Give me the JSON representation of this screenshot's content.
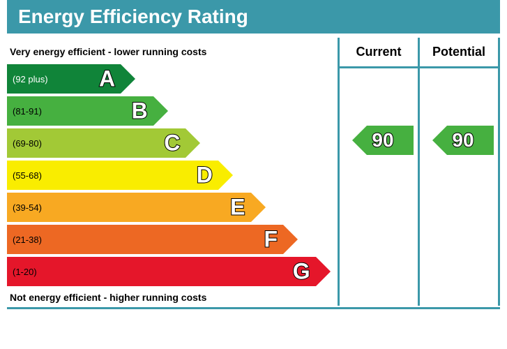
{
  "title": "Energy Efficiency Rating",
  "topLabel": "Very energy efficient - lower running costs",
  "bottomLabel": "Not energy efficient - higher running costs",
  "columns": {
    "current": {
      "label": "Current",
      "value": "90",
      "bandIndex": 1,
      "color": "#46b040"
    },
    "potential": {
      "label": "Potential",
      "value": "90",
      "bandIndex": 1,
      "color": "#46b040"
    }
  },
  "bands": [
    {
      "letter": "A",
      "range": "(92 plus)",
      "color": "#108439",
      "widthPct": 35,
      "textColor": "#ffffff"
    },
    {
      "letter": "B",
      "range": "(81-91)",
      "color": "#46b040",
      "widthPct": 45,
      "textColor": "#000000"
    },
    {
      "letter": "C",
      "range": "(69-80)",
      "color": "#a2c936",
      "widthPct": 55,
      "textColor": "#000000"
    },
    {
      "letter": "D",
      "range": "(55-68)",
      "color": "#f9ed00",
      "widthPct": 65,
      "textColor": "#000000"
    },
    {
      "letter": "E",
      "range": "(39-54)",
      "color": "#f8a922",
      "widthPct": 75,
      "textColor": "#000000"
    },
    {
      "letter": "F",
      "range": "(21-38)",
      "color": "#ed6823",
      "widthPct": 85,
      "textColor": "#000000"
    },
    {
      "letter": "G",
      "range": "(1-20)",
      "color": "#e5162a",
      "widthPct": 95,
      "textColor": "#000000"
    }
  ],
  "layout": {
    "barHeight": 42,
    "barGap": 4,
    "headerHeight": 44,
    "topLabelOffset": 36
  },
  "accentColor": "#3b98a9"
}
